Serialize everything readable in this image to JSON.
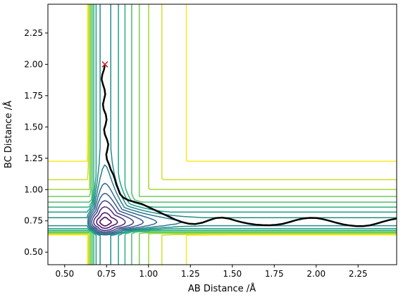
{
  "chart_data": {
    "type": "contour",
    "title": "",
    "xlabel": "AB Distance /Å",
    "ylabel": "BC Distance /Å",
    "xlim": [
      0.4,
      2.48
    ],
    "ylim": [
      0.4,
      2.48
    ],
    "xticks": [
      0.5,
      0.75,
      1.0,
      1.25,
      1.5,
      1.75,
      2.0,
      2.25
    ],
    "xtick_labels": [
      "0.50",
      "0.75",
      "1.00",
      "1.25",
      "1.50",
      "1.75",
      "2.00",
      "2.25"
    ],
    "yticks": [
      0.5,
      0.75,
      1.0,
      1.25,
      1.5,
      1.75,
      2.0,
      2.25
    ],
    "ytick_labels": [
      "0.50",
      "0.75",
      "1.00",
      "1.25",
      "1.50",
      "1.75",
      "2.00",
      "2.25"
    ],
    "grid": false,
    "colormap": "viridis",
    "colormap_stops": [
      "#440154",
      "#482878",
      "#3e4a89",
      "#31688e",
      "#26828e",
      "#1f9e89",
      "#35b779",
      "#6ece58",
      "#b5de2b",
      "#fde725"
    ],
    "contour_levels": [
      0.05,
      0.15,
      0.3,
      0.45,
      0.6,
      0.75,
      0.9,
      1.05,
      1.2,
      1.35,
      1.5,
      1.65,
      1.8,
      1.95,
      2.1
    ],
    "potential_model": {
      "d_dissociation": 1.0,
      "a_range": 6.5,
      "r_equilibrium": 0.74,
      "asymptote_ridge": 1.02,
      "ridge_width": 0.1,
      "ridge_center": 0.8
    },
    "start_marker": {
      "x": 0.74,
      "y": 2.0,
      "symbol": "x",
      "color": "#d62728"
    },
    "trajectory": {
      "color": "#000000",
      "points": [
        [
          0.74,
          2.0
        ],
        [
          0.735,
          1.96
        ],
        [
          0.725,
          1.92
        ],
        [
          0.72,
          1.88
        ],
        [
          0.728,
          1.84
        ],
        [
          0.738,
          1.8
        ],
        [
          0.742,
          1.76
        ],
        [
          0.735,
          1.72
        ],
        [
          0.728,
          1.68
        ],
        [
          0.733,
          1.64
        ],
        [
          0.745,
          1.6
        ],
        [
          0.75,
          1.56
        ],
        [
          0.744,
          1.52
        ],
        [
          0.735,
          1.48
        ],
        [
          0.74,
          1.44
        ],
        [
          0.752,
          1.4
        ],
        [
          0.76,
          1.36
        ],
        [
          0.755,
          1.32
        ],
        [
          0.748,
          1.28
        ],
        [
          0.752,
          1.24
        ],
        [
          0.765,
          1.2
        ],
        [
          0.775,
          1.16
        ],
        [
          0.79,
          1.12
        ],
        [
          0.8,
          1.08
        ],
        [
          0.808,
          1.04
        ],
        [
          0.82,
          1.0
        ],
        [
          0.83,
          0.965
        ],
        [
          0.85,
          0.935
        ],
        [
          0.88,
          0.915
        ],
        [
          0.92,
          0.9
        ],
        [
          0.96,
          0.885
        ],
        [
          1.0,
          0.86
        ],
        [
          1.04,
          0.835
        ],
        [
          1.08,
          0.81
        ],
        [
          1.12,
          0.785
        ],
        [
          1.16,
          0.76
        ],
        [
          1.2,
          0.74
        ],
        [
          1.24,
          0.728
        ],
        [
          1.28,
          0.725
        ],
        [
          1.32,
          0.735
        ],
        [
          1.36,
          0.755
        ],
        [
          1.4,
          0.772
        ],
        [
          1.44,
          0.776
        ],
        [
          1.48,
          0.768
        ],
        [
          1.52,
          0.752
        ],
        [
          1.56,
          0.738
        ],
        [
          1.6,
          0.727
        ],
        [
          1.64,
          0.72
        ],
        [
          1.68,
          0.716
        ],
        [
          1.72,
          0.715
        ],
        [
          1.76,
          0.718
        ],
        [
          1.8,
          0.726
        ],
        [
          1.84,
          0.74
        ],
        [
          1.88,
          0.756
        ],
        [
          1.92,
          0.768
        ],
        [
          1.96,
          0.774
        ],
        [
          2.0,
          0.773
        ],
        [
          2.04,
          0.764
        ],
        [
          2.08,
          0.75
        ],
        [
          2.12,
          0.735
        ],
        [
          2.16,
          0.722
        ],
        [
          2.2,
          0.713
        ],
        [
          2.24,
          0.708
        ],
        [
          2.28,
          0.708
        ],
        [
          2.32,
          0.714
        ],
        [
          2.36,
          0.728
        ],
        [
          2.4,
          0.744
        ],
        [
          2.44,
          0.758
        ],
        [
          2.48,
          0.768
        ]
      ]
    }
  }
}
